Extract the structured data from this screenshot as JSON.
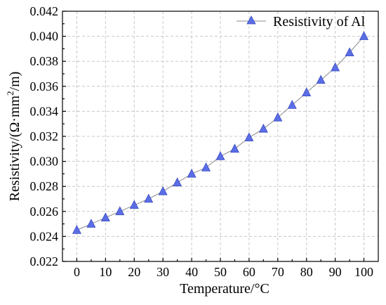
{
  "chart_data": {
    "type": "line",
    "xlabel": "Temperature/°C",
    "ylabel_parts": [
      "Resistivity/(Ω·mm",
      "2",
      "/m)"
    ],
    "x": [
      0,
      5,
      10,
      15,
      20,
      25,
      30,
      35,
      40,
      45,
      50,
      55,
      60,
      65,
      70,
      75,
      80,
      85,
      90,
      95,
      100
    ],
    "series": [
      {
        "name": "Resistivity of Al",
        "values": [
          0.0245,
          0.025,
          0.0255,
          0.026,
          0.0265,
          0.027,
          0.0276,
          0.0283,
          0.029,
          0.0295,
          0.0304,
          0.031,
          0.0319,
          0.0326,
          0.0335,
          0.0345,
          0.0355,
          0.0365,
          0.0375,
          0.0387,
          0.04
        ],
        "marker": "triangle",
        "marker_color": "#5b6ee6",
        "line_color": "#8a8a8a"
      }
    ],
    "xticks": [
      "0",
      "10",
      "20",
      "30",
      "40",
      "50",
      "60",
      "70",
      "80",
      "90",
      "100"
    ],
    "yticks": [
      "0.022",
      "0.024",
      "0.026",
      "0.028",
      "0.030",
      "0.032",
      "0.034",
      "0.036",
      "0.038",
      "0.040",
      "0.042"
    ],
    "xlim": [
      -5,
      105
    ],
    "ylim": [
      0.022,
      0.042
    ],
    "grid": true,
    "legend_position": "top-right"
  }
}
